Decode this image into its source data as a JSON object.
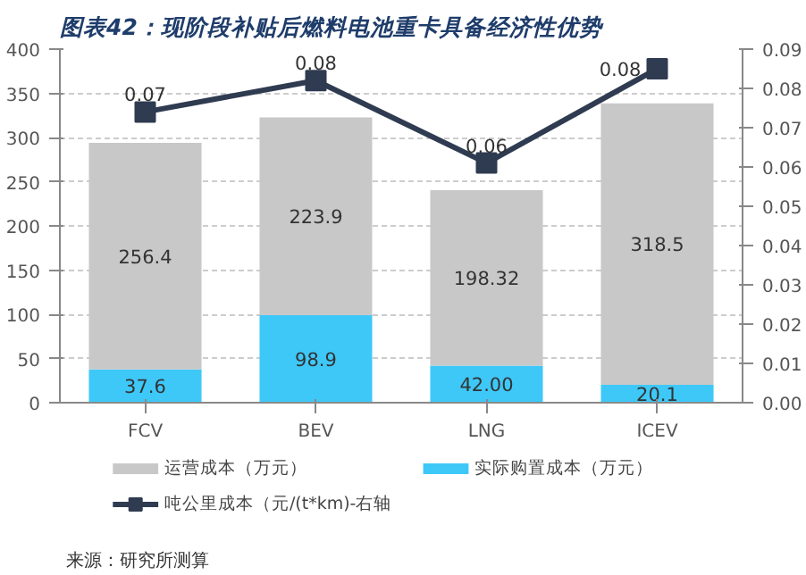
{
  "chart_data": {
    "type": "bar",
    "stacked": true,
    "title": "图表42：现阶段补贴后燃料电池重卡具备经济性优势",
    "categories": [
      "FCV",
      "BEV",
      "LNG",
      "ICEV"
    ],
    "series": [
      {
        "name": "实际购置成本（万元）",
        "color": "#3ec8f8",
        "values": [
          37.6,
          98.9,
          42.0,
          20.1
        ],
        "value_labels": [
          "37.6",
          "98.9",
          "42.00",
          "20.1"
        ]
      },
      {
        "name": "运营成本（万元）",
        "color": "#c8c8c8",
        "values": [
          256.4,
          223.9,
          198.32,
          318.5
        ],
        "value_labels": [
          "256.4",
          "223.9",
          "198.32",
          "318.5"
        ]
      },
      {
        "name": "吨公里成本（元/(t*km)-右轴",
        "type": "line",
        "axis": "y2",
        "color": "#2f3b50",
        "marker": "square",
        "values": [
          0.074,
          0.082,
          0.061,
          0.085
        ],
        "value_labels": [
          "0.07",
          "0.08",
          "0.06",
          "0.08"
        ]
      }
    ],
    "ylim": [
      0,
      400
    ],
    "yticks": [
      0,
      50,
      100,
      150,
      200,
      250,
      300,
      350,
      400
    ],
    "y2lim": [
      0,
      0.09
    ],
    "y2ticks": [
      "0.00",
      "0.01",
      "0.02",
      "0.03",
      "0.04",
      "0.05",
      "0.06",
      "0.07",
      "0.08",
      "0.09"
    ],
    "grid": "y",
    "legend": "bottom",
    "annotations": [
      "来源：研究所测算"
    ]
  }
}
